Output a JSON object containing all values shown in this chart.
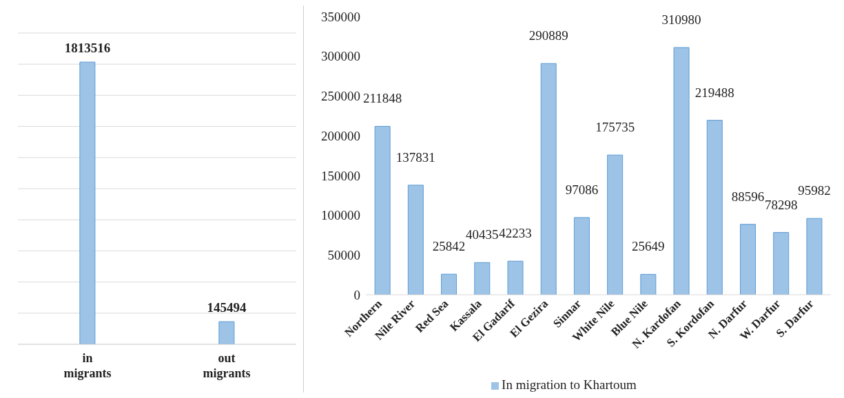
{
  "chart_data": [
    {
      "type": "bar",
      "categories": [
        "in migrants",
        "out migrants"
      ],
      "values": [
        1813516,
        145494
      ],
      "color": "#9dc3e6",
      "data_labels": true,
      "ylim": [
        0,
        2000000
      ],
      "tick_labels": "x",
      "grid": "y"
    },
    {
      "type": "bar",
      "categories": [
        "Northern",
        "Nile River",
        "Red Sea",
        "Kassala",
        "El Gadarif",
        "El Gezira",
        "Sinnar",
        "White Nile",
        "Blue Nile",
        "N. Kardofan",
        "S. Kordofan",
        "N. Darfur",
        "W. Darfur",
        "S. Darfur"
      ],
      "series": [
        {
          "name": "In migration to Khartoum",
          "color": "#9dc3e6",
          "values": [
            211848,
            137831,
            25842,
            40435,
            42233,
            290889,
            97086,
            175735,
            25649,
            310980,
            219488,
            88596,
            78298,
            95982
          ]
        }
      ],
      "data_labels": true,
      "ylim": [
        0,
        350000
      ],
      "yticks": [
        0,
        50000,
        100000,
        150000,
        200000,
        250000,
        300000,
        350000
      ],
      "legend": "bottom"
    }
  ]
}
